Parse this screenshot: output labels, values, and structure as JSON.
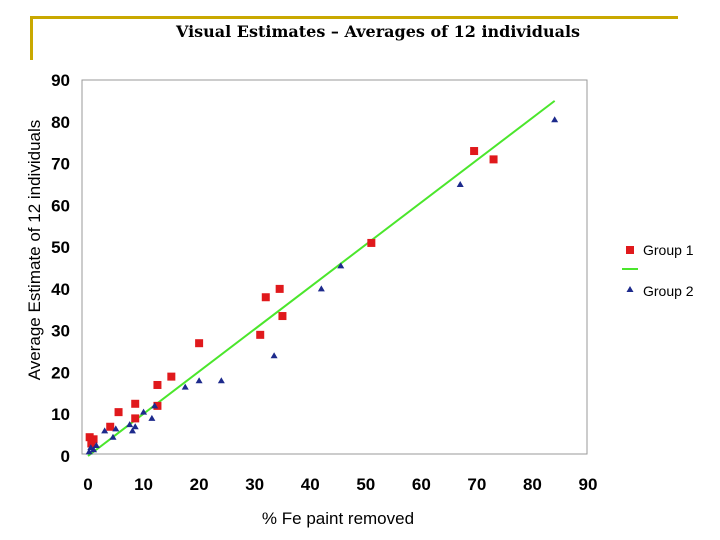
{
  "slide": {
    "title": "Visual Estimates – Averages of 12 individuals"
  },
  "colors": {
    "frame": "#c9a800",
    "group1": "#e0191c",
    "fit": "#4be62c",
    "group2": "#1d2a8c",
    "plot_border": "#999999"
  },
  "chart_data": {
    "type": "scatter",
    "xlabel": "% Fe paint removed",
    "ylabel": "Average Estimate of 12 individuals",
    "xlim": [
      0,
      90
    ],
    "ylim": [
      0,
      90
    ],
    "xticks": [
      0,
      10,
      20,
      30,
      40,
      50,
      60,
      70,
      80,
      90
    ],
    "yticks": [
      0,
      10,
      20,
      30,
      40,
      50,
      60,
      70,
      80,
      90
    ],
    "grid": false,
    "legend_position": "right",
    "series": [
      {
        "name": "Group 1",
        "marker": "square",
        "points": [
          [
            0.3,
            4.5
          ],
          [
            0.6,
            3
          ],
          [
            1,
            4
          ],
          [
            4,
            7
          ],
          [
            5.5,
            10.5
          ],
          [
            8.5,
            9
          ],
          [
            8.5,
            12.5
          ],
          [
            12.5,
            12
          ],
          [
            12.5,
            17
          ],
          [
            15,
            19
          ],
          [
            20,
            27
          ],
          [
            31,
            29
          ],
          [
            32,
            38
          ],
          [
            34.5,
            40
          ],
          [
            35,
            33.5
          ],
          [
            51,
            51
          ],
          [
            69.5,
            73
          ],
          [
            73,
            71
          ]
        ]
      },
      {
        "name": "",
        "marker": "line",
        "points": [
          [
            0,
            0
          ],
          [
            84,
            85
          ]
        ]
      },
      {
        "name": "Group 2",
        "marker": "triangle",
        "points": [
          [
            0.2,
            1
          ],
          [
            0.5,
            2
          ],
          [
            1,
            1.5
          ],
          [
            1.5,
            2.5
          ],
          [
            3,
            6
          ],
          [
            4.5,
            4.5
          ],
          [
            5,
            6.5
          ],
          [
            7.5,
            7.5
          ],
          [
            8,
            6
          ],
          [
            8.5,
            7
          ],
          [
            10,
            10.5
          ],
          [
            11.5,
            9
          ],
          [
            12,
            12
          ],
          [
            17.5,
            16.5
          ],
          [
            20,
            18
          ],
          [
            24,
            18
          ],
          [
            33.5,
            24
          ],
          [
            42,
            40
          ],
          [
            45.5,
            45.5
          ],
          [
            67,
            65
          ],
          [
            84,
            80.5
          ]
        ]
      }
    ]
  }
}
